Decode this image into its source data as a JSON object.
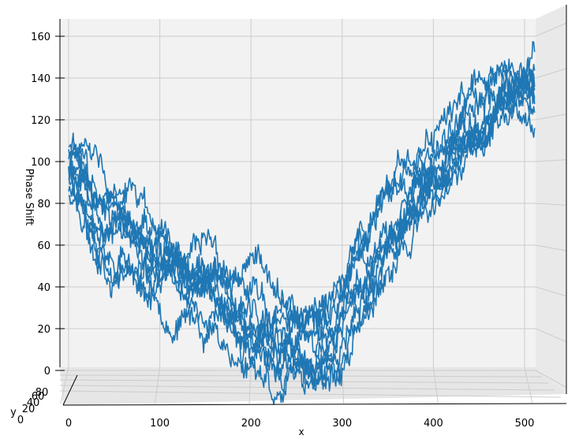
{
  "chart_data": {
    "type": "line",
    "projection": "3d-axes-viewed-front-on",
    "zlabel": "Phase Shift",
    "xlabel": "x",
    "ylabel": "y",
    "x_ticks": [
      "0",
      "100",
      "200",
      "300",
      "400",
      "500"
    ],
    "z_ticks": [
      "0",
      "20",
      "40",
      "60",
      "80",
      "100",
      "120",
      "140",
      "160"
    ],
    "y_ticks": [
      "0",
      "20",
      "40",
      "60",
      "80"
    ],
    "xlim": [
      0,
      511
    ],
    "zlim": [
      -5,
      168
    ],
    "grid": true,
    "series_color": "#1f77b4",
    "pane_color": "#f2f2f2",
    "num_traces": 10,
    "trace_samples": 512,
    "trend": {
      "description": "Ten noisy traces following a common U-shaped phase profile",
      "x": [
        0,
        50,
        100,
        150,
        200,
        230,
        260,
        290,
        320,
        350,
        400,
        450,
        480,
        511
      ],
      "z": [
        98,
        75,
        55,
        38,
        18,
        10,
        8,
        12,
        40,
        62,
        85,
        112,
        128,
        132
      ]
    },
    "traces": [
      {
        "name": "",
        "offset": 3,
        "noise": 9,
        "seed": 11
      },
      {
        "name": "",
        "offset": -4,
        "noise": 8,
        "seed": 23
      },
      {
        "name": "",
        "offset": 0,
        "noise": 10,
        "seed": 37
      },
      {
        "name": "",
        "offset": 6,
        "noise": 7,
        "seed": 41
      },
      {
        "name": "",
        "offset": -7,
        "noise": 9,
        "seed": 53
      },
      {
        "name": "",
        "offset": 2,
        "noise": 8,
        "seed": 67
      },
      {
        "name": "",
        "offset": -2,
        "noise": 10,
        "seed": 71
      },
      {
        "name": "",
        "offset": 8,
        "noise": 8,
        "seed": 83
      },
      {
        "name": "",
        "offset": -9,
        "noise": 9,
        "seed": 97
      },
      {
        "name": "",
        "offset": 5,
        "noise": 7,
        "seed": 101
      }
    ]
  }
}
